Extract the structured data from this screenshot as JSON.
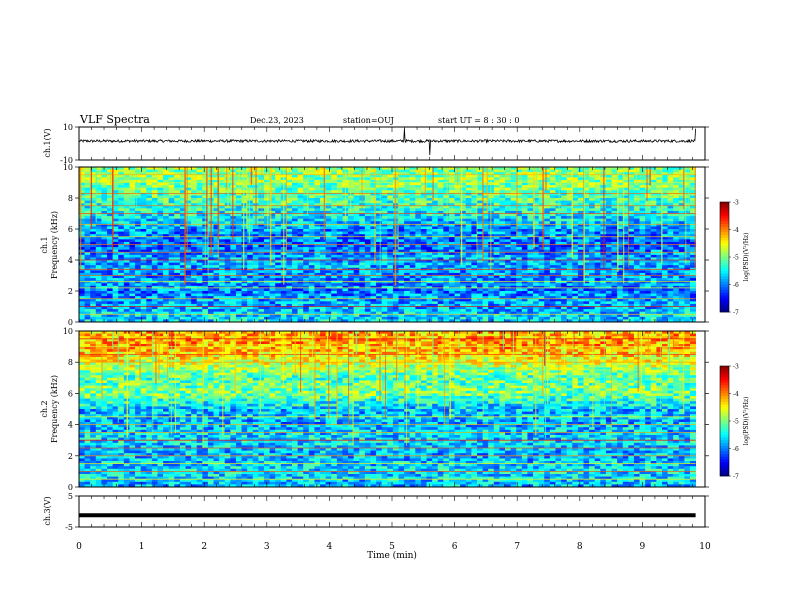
{
  "header": {
    "title": "VLF Spectra",
    "date": "Dec.23, 2023",
    "station": "station=OUJ",
    "start_ut": "start  UT  =   8  : 30 : 0"
  },
  "chart_data": [
    {
      "type": "line",
      "panel": "ch1-waveform",
      "ylabel": "ch.1(V)",
      "ylim": [
        -10,
        10
      ],
      "y_ticks": [
        "10",
        "-10"
      ],
      "xlim": [
        0,
        10
      ],
      "series": [
        {
          "baseline": 1.5,
          "noise_amplitude": 0.8,
          "spikes": [
            [
              5.2,
              9
            ],
            [
              5.6,
              -7
            ],
            [
              9.85,
              9
            ]
          ]
        }
      ],
      "color": "#000000"
    },
    {
      "type": "heatmap",
      "panel": "ch1-spectrogram",
      "ylabel": "ch.1\nFrequency (kHz)",
      "ylabel_line1": "ch.1",
      "ylabel_line2": "Frequency (kHz)",
      "ylim": [
        0,
        10
      ],
      "y_ticks": [
        "0",
        "2",
        "4",
        "6",
        "8",
        "10"
      ],
      "xlim": [
        0,
        9.85
      ],
      "colorbar": {
        "label": "log(PSD)(V²/Hz)",
        "range": [
          -7,
          -3
        ],
        "ticks": [
          "-3",
          "-4",
          "-5",
          "-6",
          "-7"
        ]
      },
      "lines_khz": [
        0.5,
        1.0,
        1.5,
        2.2,
        2.6,
        3.0,
        3.4,
        4.0,
        4.5,
        5.0,
        5.5,
        6.3,
        7.0,
        7.5,
        8.3,
        9.0,
        9.5
      ],
      "band_levels": [
        [
          0,
          0.35
        ],
        [
          1,
          0.3
        ],
        [
          2,
          0.25
        ],
        [
          3,
          0.28
        ],
        [
          4,
          0.3
        ],
        [
          5,
          0.22
        ],
        [
          6,
          0.28
        ],
        [
          7,
          0.38
        ],
        [
          8,
          0.45
        ],
        [
          9,
          0.5
        ],
        [
          10,
          0.52
        ]
      ]
    },
    {
      "type": "heatmap",
      "panel": "ch2-spectrogram",
      "ylabel": "ch.2\nFrequency (kHz)",
      "ylabel_line1": "ch.2",
      "ylabel_line2": "Frequency (kHz)",
      "ylim": [
        0,
        10
      ],
      "y_ticks": [
        "0",
        "2",
        "4",
        "6",
        "8",
        "10"
      ],
      "xlim": [
        0,
        9.85
      ],
      "colorbar": {
        "label": "log(PSD)(V²/Hz)",
        "range": [
          -7,
          -3
        ],
        "ticks": [
          "-3",
          "-4",
          "-5",
          "-6",
          "-7"
        ]
      },
      "lines_khz": [
        0.5,
        1.0,
        1.5,
        2.0,
        2.5,
        3.0,
        3.5,
        4.0,
        4.5,
        7.5,
        8.0,
        8.5,
        9.0,
        9.5
      ],
      "band_levels": [
        [
          0,
          0.3
        ],
        [
          1,
          0.35
        ],
        [
          2,
          0.3
        ],
        [
          3,
          0.35
        ],
        [
          4,
          0.3
        ],
        [
          5,
          0.32
        ],
        [
          6,
          0.5
        ],
        [
          7,
          0.45
        ],
        [
          8,
          0.6
        ],
        [
          9,
          0.72
        ],
        [
          10,
          0.7
        ]
      ]
    },
    {
      "type": "line",
      "panel": "ch3-waveform",
      "ylabel": "ch.3(V)",
      "ylim": [
        -5,
        5
      ],
      "y_ticks": [
        "5",
        "-5"
      ],
      "xlim": [
        0,
        9.85
      ],
      "series": [
        {
          "value": -1.2
        }
      ],
      "color": "#000000"
    }
  ],
  "x_axis": {
    "label": "Time  (min)",
    "ticks": [
      "0",
      "1",
      "2",
      "3",
      "4",
      "5",
      "6",
      "7",
      "8",
      "9",
      "10"
    ],
    "range": [
      0,
      10
    ]
  }
}
